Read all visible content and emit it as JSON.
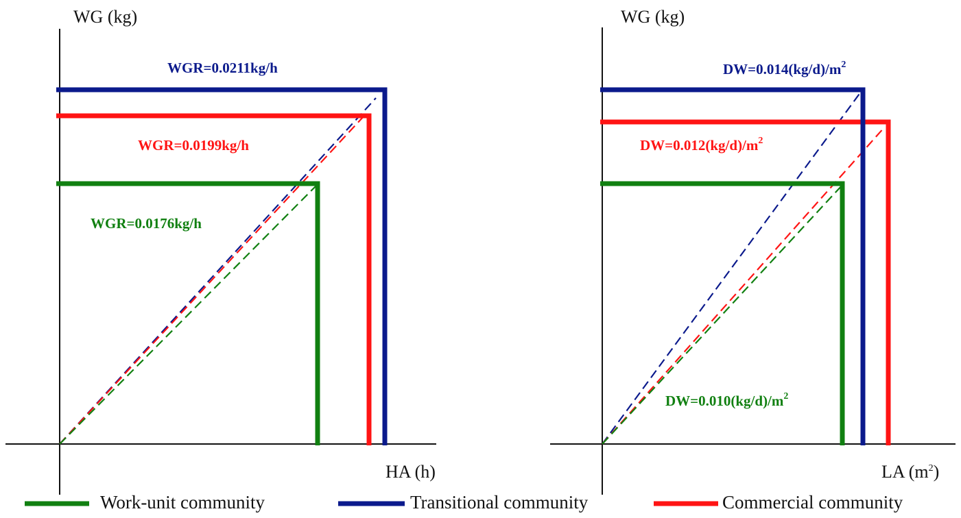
{
  "colors": {
    "work_unit": "#118011",
    "transitional": "#0b1a8c",
    "commercial": "#ff1414",
    "axis": "#111111"
  },
  "left_panel": {
    "y_label": "WG (kg)",
    "x_label": "HA (h)",
    "rates": {
      "transitional": "WGR=0.0211kg/h",
      "commercial": "WGR=0.0199kg/h",
      "work_unit": "WGR=0.0176kg/h"
    }
  },
  "right_panel": {
    "y_label": "WG (kg)",
    "x_label_base": "LA (m",
    "x_label_sup": "2",
    "x_label_close": ")",
    "rates": {
      "transitional_base": "DW=0.014(kg/d)/m",
      "commercial_base": "DW=0.012(kg/d)/m",
      "work_unit_base": "DW=0.010(kg/d)/m",
      "sup": "2"
    }
  },
  "legend": {
    "work_unit": "Work-unit community",
    "transitional": "Transitional community",
    "commercial": "Commercial community"
  }
}
